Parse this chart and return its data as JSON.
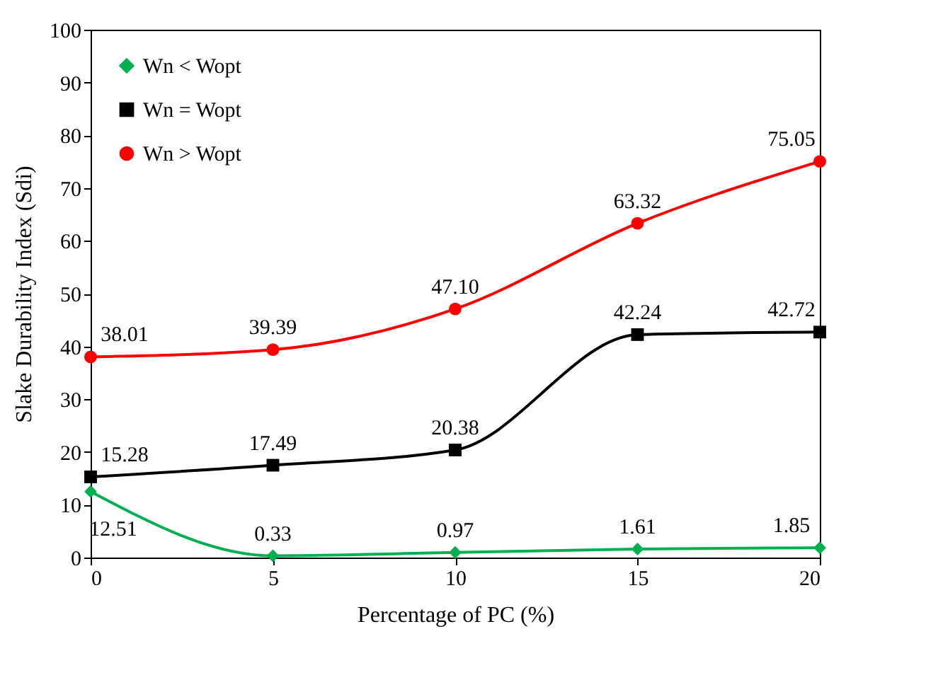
{
  "chart_data": {
    "type": "line",
    "xlabel": "Percentage of PC (%)",
    "ylabel": "Slake Durability Index (Sdi)",
    "x": [
      0,
      5,
      10,
      15,
      20
    ],
    "xlim": [
      0,
      20
    ],
    "xticks": [
      0,
      5,
      10,
      15,
      20
    ],
    "ylim": [
      0,
      100
    ],
    "yticks": [
      0,
      10,
      20,
      30,
      40,
      50,
      60,
      70,
      80,
      90,
      100
    ],
    "grid": false,
    "legend": "top left",
    "line_style": "solid",
    "series": [
      {
        "name": "Wn < Wopt",
        "color": "#00b050",
        "marker": "diamond",
        "values": [
          12.51,
          0.33,
          0.97,
          1.61,
          1.85
        ],
        "value_labels": [
          "12.51",
          "0.33",
          "0.97",
          "1.61",
          "1.85"
        ]
      },
      {
        "name": "Wn = Wopt",
        "color": "#000000",
        "marker": "square",
        "values": [
          15.28,
          17.49,
          20.38,
          42.24,
          42.72
        ],
        "value_labels": [
          "15.28",
          "17.49",
          "20.38",
          "42.24",
          "42.72"
        ]
      },
      {
        "name": "Wn > Wopt",
        "color": "#ff0000",
        "marker": "circle",
        "values": [
          38.01,
          39.39,
          47.1,
          63.32,
          75.05
        ],
        "value_labels": [
          "38.01",
          "39.39",
          "47.10",
          "63.32",
          "75.05"
        ]
      }
    ]
  }
}
